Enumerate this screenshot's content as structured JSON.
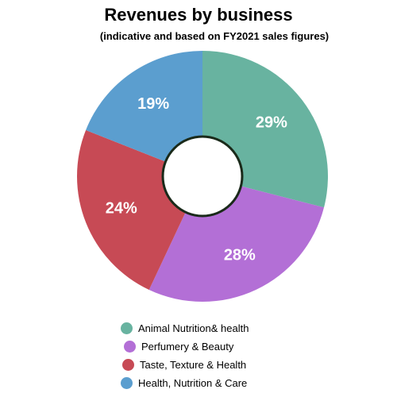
{
  "chart_data": {
    "type": "pie",
    "donut": true,
    "title": "Revenues by business",
    "subtitle": "(indicative and based on FY2021 sales figures)",
    "categories": [
      "Animal Nutrition& health",
      "Perfumery & Beauty",
      "Taste, Texture & Health",
      "Health, Nutrition & Care"
    ],
    "values": [
      29,
      28,
      24,
      19
    ],
    "value_labels": [
      "29%",
      "28%",
      "24%",
      "19%"
    ],
    "colors": [
      "#68b3a0",
      "#b36fd6",
      "#c74a55",
      "#5b9ecf"
    ],
    "legend_position": "bottom",
    "start_angle": "top",
    "direction": "clockwise"
  }
}
